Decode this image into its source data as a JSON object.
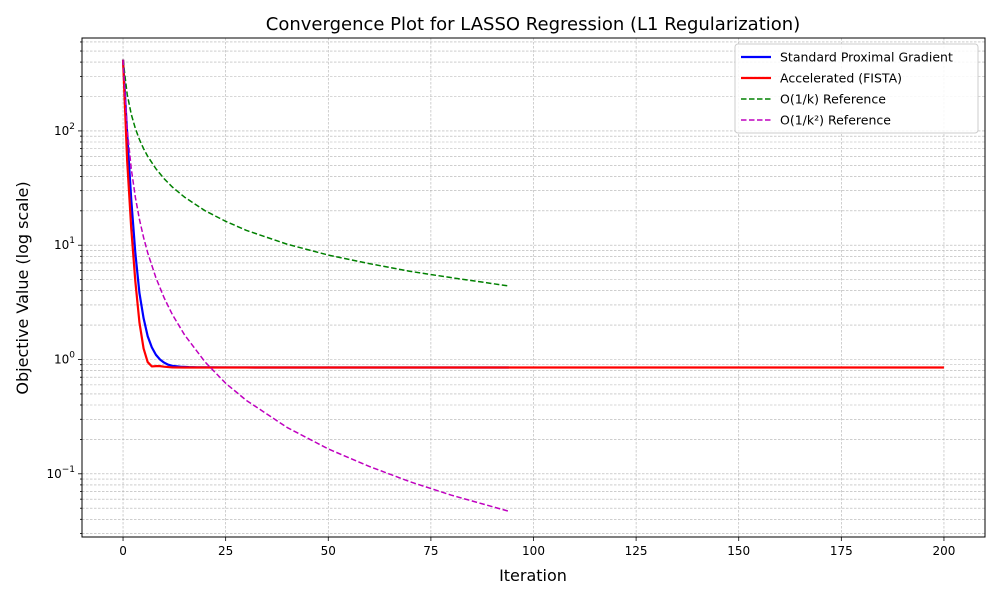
{
  "chart_data": {
    "type": "line",
    "title": "Convergence Plot for LASSO Regression (L1 Regularization)",
    "xlabel": "Iteration",
    "ylabel": "Objective Value (log scale)",
    "xlim": [
      -10,
      210
    ],
    "ylim": [
      0.028,
      650
    ],
    "yscale": "log",
    "grid": "both (major and minor), dashed",
    "legend_position": "top-right",
    "x_ticks": [
      0,
      25,
      50,
      75,
      100,
      125,
      150,
      175,
      200
    ],
    "x_tick_labels": [
      "0",
      "25",
      "50",
      "75",
      "100",
      "125",
      "150",
      "175",
      "200"
    ],
    "y_ticks": [
      0.1,
      1,
      10,
      100
    ],
    "y_tick_labels": [
      {
        "base": "10",
        "exp": "−1"
      },
      {
        "base": "10",
        "exp": "0"
      },
      {
        "base": "10",
        "exp": "1"
      },
      {
        "base": "10",
        "exp": "2"
      }
    ],
    "series": [
      {
        "name": "Standard Proximal Gradient",
        "color": "#0000ff",
        "style": "solid",
        "x": [
          0,
          1,
          2,
          3,
          4,
          5,
          6,
          7,
          8,
          9,
          10,
          11,
          12,
          14,
          16,
          18,
          20,
          25,
          30,
          40,
          50,
          60,
          70,
          80,
          90,
          94
        ],
        "y": [
          420,
          95,
          25,
          8.5,
          3.8,
          2.3,
          1.6,
          1.28,
          1.1,
          1.0,
          0.94,
          0.9,
          0.88,
          0.865,
          0.858,
          0.855,
          0.853,
          0.852,
          0.852,
          0.851,
          0.851,
          0.851,
          0.851,
          0.851,
          0.851,
          0.851
        ]
      },
      {
        "name": "Accelerated (FISTA)",
        "color": "#ff0000",
        "style": "solid",
        "x": [
          0,
          1,
          2,
          3,
          4,
          5,
          6,
          7,
          8,
          9,
          10,
          12,
          15,
          20,
          30,
          50,
          75,
          100,
          125,
          150,
          175,
          200
        ],
        "y": [
          420,
          55,
          14,
          4.8,
          2.1,
          1.25,
          0.95,
          0.87,
          0.875,
          0.875,
          0.865,
          0.852,
          0.851,
          0.851,
          0.851,
          0.851,
          0.851,
          0.851,
          0.851,
          0.851,
          0.851,
          0.851
        ]
      },
      {
        "name": "O(1/k) Reference",
        "color": "#008000",
        "style": "dashed",
        "x": [
          0,
          1,
          2,
          3,
          4,
          5,
          6,
          8,
          10,
          12,
          15,
          20,
          25,
          30,
          40,
          50,
          60,
          70,
          80,
          94
        ],
        "y": [
          420,
          210,
          140,
          105,
          84,
          70,
          60,
          46.7,
          38.2,
          32.3,
          26.3,
          20,
          16.2,
          13.5,
          10.2,
          8.2,
          6.9,
          5.9,
          5.2,
          4.4
        ]
      },
      {
        "name": "O(1/k²) Reference",
        "color": "#bf00bf",
        "style": "dashed",
        "x": [
          0,
          1,
          2,
          3,
          4,
          5,
          6,
          8,
          10,
          12,
          15,
          20,
          25,
          30,
          40,
          50,
          60,
          70,
          80,
          94
        ],
        "y": [
          420,
          105,
          46.7,
          26.3,
          16.8,
          11.7,
          8.6,
          5.2,
          3.47,
          2.48,
          1.64,
          0.95,
          0.62,
          0.44,
          0.254,
          0.165,
          0.116,
          0.085,
          0.065,
          0.047
        ]
      }
    ]
  }
}
